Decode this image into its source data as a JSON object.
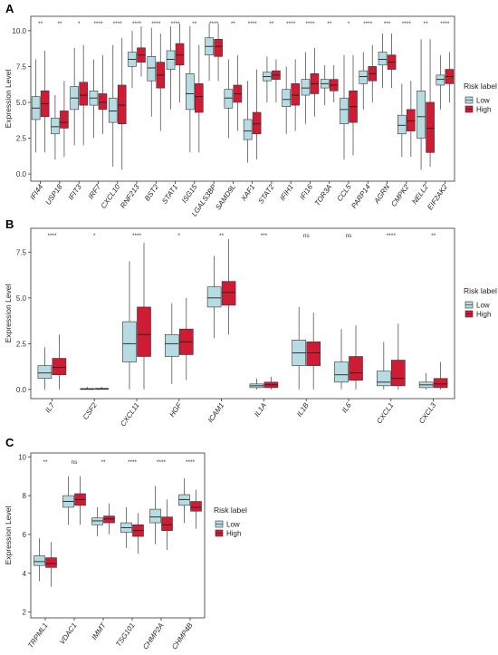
{
  "chart_data": [
    {
      "type": "box",
      "panel_label": "A",
      "ylabel": "Expression Level",
      "ylim": [
        -0.5,
        11
      ],
      "yticks": [
        0.0,
        2.5,
        5.0,
        7.5,
        10.0
      ],
      "ytick_labels": [
        "0.0",
        "2.5",
        "5.0",
        "7.5",
        "10.0"
      ],
      "legend": {
        "title": "Risk label",
        "entries": [
          "Low",
          "High"
        ],
        "placement": "right"
      },
      "categories": [
        "IFI44",
        "USP18",
        "IFIT3",
        "IRF7",
        "CXCL10",
        "RNF213",
        "BST2",
        "STAT1",
        "ISG15",
        "LGALS3BP",
        "SAMD9L",
        "XAF1",
        "STAT2",
        "IFIH1",
        "IFI16",
        "TOR3A",
        "CCL5",
        "PARP14",
        "AGRN",
        "CMPK2",
        "NELL2",
        "EIF2AK2"
      ],
      "significance": [
        "**",
        "**",
        "*",
        "****",
        "****",
        "****",
        "****",
        "****",
        "**",
        "****",
        "**",
        "****",
        "**",
        "****",
        "****",
        "**",
        "*",
        "****",
        "***",
        "****",
        "**",
        "****"
      ],
      "series": [
        {
          "name": "Low",
          "boxes": [
            {
              "min": 1.5,
              "q1": 3.8,
              "median": 4.6,
              "q3": 5.4,
              "max": 8.0
            },
            {
              "min": 1.0,
              "q1": 2.8,
              "median": 3.3,
              "q3": 3.9,
              "max": 5.5
            },
            {
              "min": 2.0,
              "q1": 4.5,
              "median": 5.3,
              "q3": 6.1,
              "max": 8.8
            },
            {
              "min": 2.5,
              "q1": 4.8,
              "median": 5.3,
              "q3": 5.8,
              "max": 8.0
            },
            {
              "min": 0.5,
              "q1": 3.6,
              "median": 4.4,
              "q3": 5.3,
              "max": 9.0
            },
            {
              "min": 6.0,
              "q1": 7.5,
              "median": 8.0,
              "q3": 8.5,
              "max": 10.0
            },
            {
              "min": 4.0,
              "q1": 6.5,
              "median": 7.4,
              "q3": 8.2,
              "max": 10.2
            },
            {
              "min": 4.5,
              "q1": 7.3,
              "median": 8.0,
              "q3": 8.6,
              "max": 10.3
            },
            {
              "min": 1.5,
              "q1": 4.5,
              "median": 5.6,
              "q3": 7.0,
              "max": 10.3
            },
            {
              "min": 6.5,
              "q1": 8.3,
              "median": 8.9,
              "q3": 9.5,
              "max": 10.5
            },
            {
              "min": 2.5,
              "q1": 4.6,
              "median": 5.3,
              "q3": 5.9,
              "max": 8.0
            },
            {
              "min": 0.8,
              "q1": 2.4,
              "median": 3.0,
              "q3": 3.8,
              "max": 6.5
            },
            {
              "min": 5.0,
              "q1": 6.5,
              "median": 6.8,
              "q3": 7.1,
              "max": 8.2
            },
            {
              "min": 2.8,
              "q1": 4.7,
              "median": 5.2,
              "q3": 5.9,
              "max": 7.5
            },
            {
              "min": 3.5,
              "q1": 5.5,
              "median": 6.0,
              "q3": 6.6,
              "max": 8.5
            },
            {
              "min": 4.8,
              "q1": 6.0,
              "median": 6.3,
              "q3": 6.6,
              "max": 7.6
            },
            {
              "min": 1.0,
              "q1": 3.5,
              "median": 4.5,
              "q3": 5.3,
              "max": 8.3
            },
            {
              "min": 4.5,
              "q1": 6.3,
              "median": 6.8,
              "q3": 7.2,
              "max": 8.5
            },
            {
              "min": 6.0,
              "q1": 7.6,
              "median": 8.0,
              "q3": 8.5,
              "max": 9.8
            },
            {
              "min": 1.2,
              "q1": 2.8,
              "median": 3.4,
              "q3": 4.1,
              "max": 6.3
            },
            {
              "min": 0.3,
              "q1": 2.5,
              "median": 4.0,
              "q3": 5.8,
              "max": 9.4
            },
            {
              "min": 4.5,
              "q1": 6.2,
              "median": 6.6,
              "q3": 6.9,
              "max": 8.3
            }
          ]
        },
        {
          "name": "High",
          "boxes": [
            {
              "min": 1.5,
              "q1": 4.0,
              "median": 4.9,
              "q3": 5.8,
              "max": 8.6
            },
            {
              "min": 1.2,
              "q1": 3.2,
              "median": 3.6,
              "q3": 4.4,
              "max": 6.5
            },
            {
              "min": 2.0,
              "q1": 4.8,
              "median": 5.5,
              "q3": 6.4,
              "max": 9.0
            },
            {
              "min": 2.8,
              "q1": 4.5,
              "median": 5.0,
              "q3": 5.6,
              "max": 8.3
            },
            {
              "min": 0.3,
              "q1": 3.5,
              "median": 4.8,
              "q3": 6.2,
              "max": 9.5
            },
            {
              "min": 6.8,
              "q1": 7.8,
              "median": 8.3,
              "q3": 8.8,
              "max": 10.3
            },
            {
              "min": 3.0,
              "q1": 6.0,
              "median": 6.9,
              "q3": 7.8,
              "max": 9.8
            },
            {
              "min": 5.0,
              "q1": 7.6,
              "median": 8.3,
              "q3": 9.1,
              "max": 10.5
            },
            {
              "min": 1.5,
              "q1": 4.3,
              "median": 5.4,
              "q3": 6.3,
              "max": 9.0
            },
            {
              "min": 6.5,
              "q1": 8.2,
              "median": 8.9,
              "q3": 9.4,
              "max": 10.5
            },
            {
              "min": 3.0,
              "q1": 5.0,
              "median": 5.6,
              "q3": 6.2,
              "max": 8.3
            },
            {
              "min": 1.0,
              "q1": 2.8,
              "median": 3.5,
              "q3": 4.3,
              "max": 7.3
            },
            {
              "min": 5.0,
              "q1": 6.6,
              "median": 6.9,
              "q3": 7.2,
              "max": 8.0
            },
            {
              "min": 3.0,
              "q1": 4.8,
              "median": 5.5,
              "q3": 6.3,
              "max": 8.0
            },
            {
              "min": 4.0,
              "q1": 5.6,
              "median": 6.3,
              "q3": 7.0,
              "max": 8.8
            },
            {
              "min": 5.0,
              "q1": 5.8,
              "median": 6.2,
              "q3": 6.6,
              "max": 7.6
            },
            {
              "min": 1.3,
              "q1": 3.6,
              "median": 4.7,
              "q3": 5.8,
              "max": 8.3
            },
            {
              "min": 5.0,
              "q1": 6.5,
              "median": 7.0,
              "q3": 7.5,
              "max": 9.0
            },
            {
              "min": 6.0,
              "q1": 7.3,
              "median": 7.8,
              "q3": 8.3,
              "max": 9.8
            },
            {
              "min": 1.2,
              "q1": 3.0,
              "median": 3.7,
              "q3": 4.5,
              "max": 6.5
            },
            {
              "min": 0.5,
              "q1": 1.5,
              "median": 3.2,
              "q3": 5.0,
              "max": 9.4
            },
            {
              "min": 5.0,
              "q1": 6.3,
              "median": 6.8,
              "q3": 7.3,
              "max": 8.5
            }
          ]
        }
      ]
    },
    {
      "type": "box",
      "panel_label": "B",
      "ylabel": "Expression Level",
      "ylim": [
        -0.5,
        8.8
      ],
      "yticks": [
        0.0,
        2.5,
        5.0,
        7.5
      ],
      "ytick_labels": [
        "0.0",
        "2.5",
        "5.0",
        "7.5"
      ],
      "legend": {
        "title": "Risk label",
        "entries": [
          "Low",
          "High"
        ],
        "placement": "right"
      },
      "categories": [
        "IL7",
        "CSF2",
        "CXCL11",
        "HGF",
        "ICAM1",
        "IL1A",
        "IL1B",
        "IL6",
        "CXCL1",
        "CXCL3"
      ],
      "significance": [
        "****",
        "*",
        "****",
        "*",
        "**",
        "***",
        "ns",
        "ns",
        "****",
        "**"
      ],
      "series": [
        {
          "name": "Low",
          "boxes": [
            {
              "min": 0.0,
              "q1": 0.6,
              "median": 0.9,
              "q3": 1.3,
              "max": 2.3
            },
            {
              "min": 0.0,
              "q1": 0.0,
              "median": 0.02,
              "q3": 0.05,
              "max": 0.15
            },
            {
              "min": 0.0,
              "q1": 1.5,
              "median": 2.5,
              "q3": 3.7,
              "max": 7.0
            },
            {
              "min": 0.3,
              "q1": 1.8,
              "median": 2.5,
              "q3": 3.0,
              "max": 4.7
            },
            {
              "min": 2.8,
              "q1": 4.5,
              "median": 5.0,
              "q3": 5.6,
              "max": 7.3
            },
            {
              "min": 0.0,
              "q1": 0.1,
              "median": 0.2,
              "q3": 0.3,
              "max": 0.6
            },
            {
              "min": 0.0,
              "q1": 1.3,
              "median": 2.0,
              "q3": 2.7,
              "max": 4.5
            },
            {
              "min": 0.0,
              "q1": 0.4,
              "median": 0.8,
              "q3": 1.5,
              "max": 3.3
            },
            {
              "min": 0.0,
              "q1": 0.2,
              "median": 0.4,
              "q3": 1.0,
              "max": 2.6
            },
            {
              "min": 0.0,
              "q1": 0.1,
              "median": 0.25,
              "q3": 0.4,
              "max": 0.9
            }
          ]
        },
        {
          "name": "High",
          "boxes": [
            {
              "min": 0.0,
              "q1": 0.8,
              "median": 1.2,
              "q3": 1.7,
              "max": 3.0
            },
            {
              "min": 0.0,
              "q1": 0.01,
              "median": 0.03,
              "q3": 0.06,
              "max": 0.15
            },
            {
              "min": 0.0,
              "q1": 1.8,
              "median": 3.0,
              "q3": 4.5,
              "max": 8.0
            },
            {
              "min": 0.5,
              "q1": 1.9,
              "median": 2.6,
              "q3": 3.3,
              "max": 5.0
            },
            {
              "min": 3.0,
              "q1": 4.6,
              "median": 5.3,
              "q3": 5.9,
              "max": 8.2
            },
            {
              "min": 0.0,
              "q1": 0.1,
              "median": 0.25,
              "q3": 0.4,
              "max": 0.7
            },
            {
              "min": 0.0,
              "q1": 1.3,
              "median": 2.0,
              "q3": 2.6,
              "max": 4.2
            },
            {
              "min": 0.0,
              "q1": 0.5,
              "median": 0.9,
              "q3": 1.8,
              "max": 3.5
            },
            {
              "min": 0.0,
              "q1": 0.2,
              "median": 0.6,
              "q3": 1.6,
              "max": 3.6
            },
            {
              "min": 0.0,
              "q1": 0.1,
              "median": 0.3,
              "q3": 0.6,
              "max": 1.5
            }
          ]
        }
      ]
    },
    {
      "type": "box",
      "panel_label": "C",
      "ylabel": "Expression Level",
      "ylim": [
        1.7,
        10.2
      ],
      "yticks": [
        2,
        4,
        6,
        8,
        10
      ],
      "ytick_labels": [
        "2",
        "4",
        "6",
        "8",
        "10"
      ],
      "legend": {
        "title": "Risk label",
        "entries": [
          "Low",
          "High"
        ],
        "placement": "right"
      },
      "categories": [
        "TRPML1",
        "VDAC1",
        "IMMT",
        "TSG101",
        "CHMP2A",
        "CHMP4B"
      ],
      "significance": [
        "**",
        "ns",
        "**",
        "****",
        "****",
        "****"
      ],
      "series": [
        {
          "name": "Low",
          "boxes": [
            {
              "min": 3.6,
              "q1": 4.4,
              "median": 4.6,
              "q3": 4.9,
              "max": 5.8
            },
            {
              "min": 6.5,
              "q1": 7.4,
              "median": 7.7,
              "q3": 8.0,
              "max": 9.0
            },
            {
              "min": 5.9,
              "q1": 6.5,
              "median": 6.7,
              "q3": 6.85,
              "max": 7.4
            },
            {
              "min": 5.3,
              "q1": 6.1,
              "median": 6.35,
              "q3": 6.6,
              "max": 7.4
            },
            {
              "min": 5.5,
              "q1": 6.6,
              "median": 6.9,
              "q3": 7.3,
              "max": 8.5
            },
            {
              "min": 6.6,
              "q1": 7.5,
              "median": 7.8,
              "q3": 8.05,
              "max": 8.9
            }
          ]
        },
        {
          "name": "High",
          "boxes": [
            {
              "min": 3.3,
              "q1": 4.3,
              "median": 4.5,
              "q3": 4.8,
              "max": 5.6
            },
            {
              "min": 6.5,
              "q1": 7.5,
              "median": 7.8,
              "q3": 8.1,
              "max": 9.0
            },
            {
              "min": 6.0,
              "q1": 6.6,
              "median": 6.8,
              "q3": 6.95,
              "max": 7.6
            },
            {
              "min": 5.0,
              "q1": 5.9,
              "median": 6.2,
              "q3": 6.5,
              "max": 7.1
            },
            {
              "min": 5.2,
              "q1": 6.2,
              "median": 6.5,
              "q3": 6.9,
              "max": 7.8
            },
            {
              "min": 6.3,
              "q1": 7.2,
              "median": 7.4,
              "q3": 7.7,
              "max": 8.3
            }
          ]
        }
      ]
    }
  ],
  "colors": {
    "Low": "#b7dbe2",
    "High": "#cf1b33",
    "frame": "#333333",
    "whisker": "#555555"
  }
}
